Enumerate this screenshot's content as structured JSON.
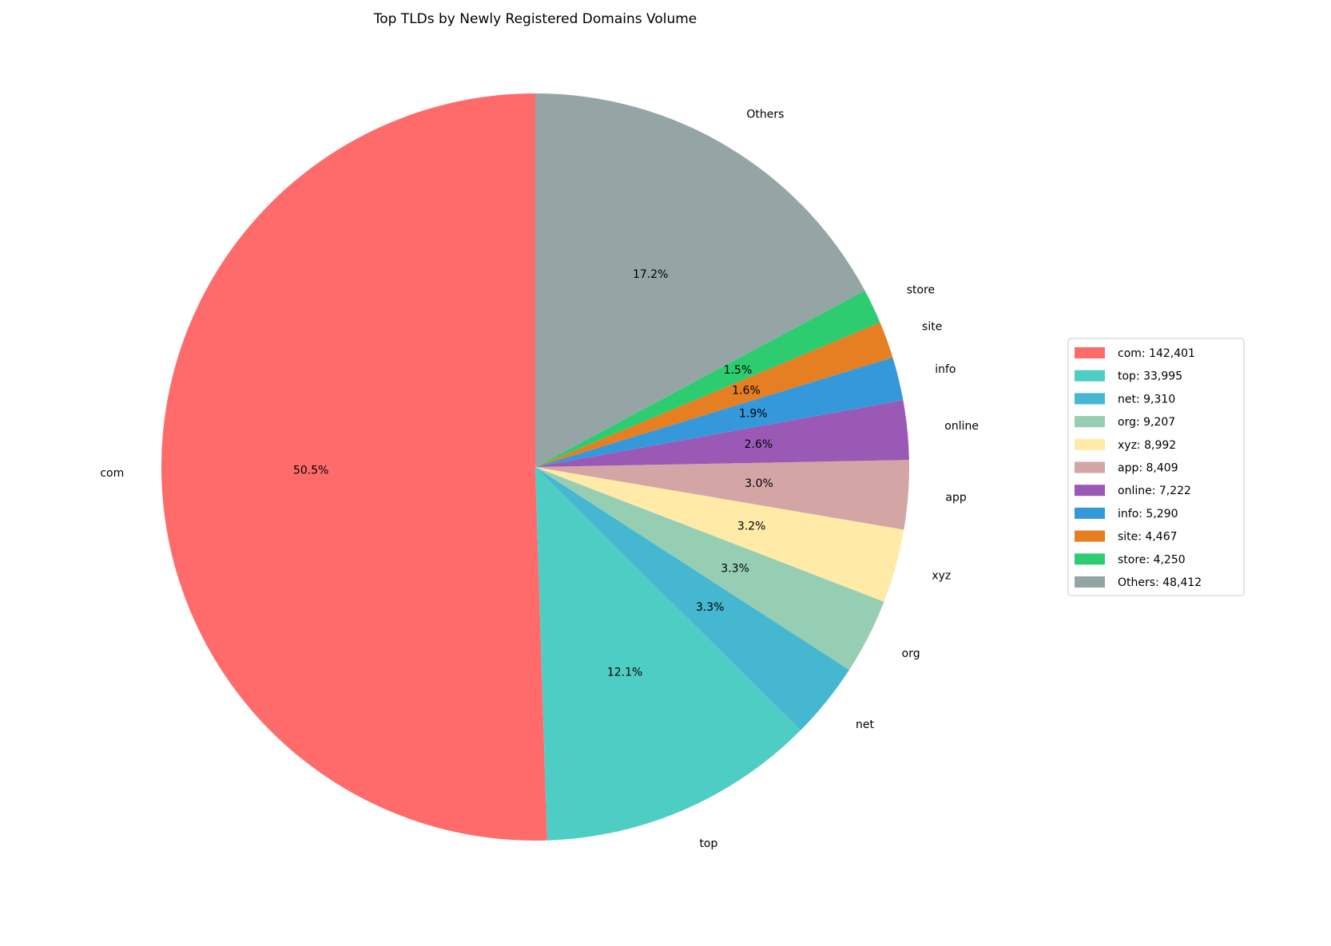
{
  "chart_data": {
    "type": "pie",
    "title": "Top TLDs by Newly Registered Domains Volume",
    "categories": [
      "com",
      "top",
      "net",
      "org",
      "xyz",
      "app",
      "online",
      "info",
      "site",
      "store",
      "Others"
    ],
    "values": [
      142401,
      33995,
      9310,
      9207,
      8992,
      8409,
      7222,
      5290,
      4467,
      4250,
      48412
    ],
    "percent_labels": [
      "50.5%",
      "12.1%",
      "3.3%",
      "3.3%",
      "3.2%",
      "3.0%",
      "2.6%",
      "1.9%",
      "1.6%",
      "1.5%",
      "17.2%"
    ],
    "legend_labels": [
      "com: 142,401",
      "top: 33,995",
      "net: 9,310",
      "org: 9,207",
      "xyz: 8,992",
      "app: 8,409",
      "online: 7,222",
      "info: 5,290",
      "site: 4,467",
      "store: 4,250",
      "Others: 48,412"
    ],
    "colors": [
      "#ff6b6b",
      "#4ecdc4",
      "#45b7d1",
      "#96ceb4",
      "#ffeaa7",
      "#d4a5a5",
      "#9b59b6",
      "#3498db",
      "#e67e22",
      "#2ecc71",
      "#95a5a6"
    ],
    "start_angle": 90,
    "counterclock": true,
    "legend": "right"
  }
}
